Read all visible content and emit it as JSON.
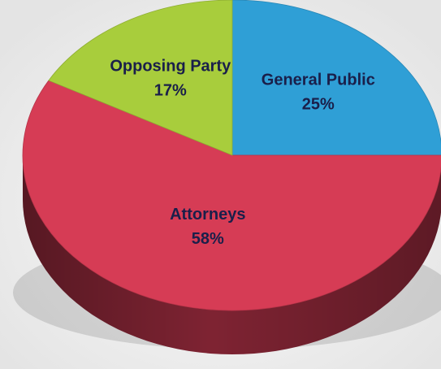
{
  "chart_data": {
    "type": "pie",
    "style": "3d",
    "slices": [
      {
        "label": "General Public",
        "value": 25,
        "display": "25%",
        "color": "#2f9fd6"
      },
      {
        "label": "Attorneys",
        "value": 58,
        "display": "58%",
        "color": "#d63c55"
      },
      {
        "label": "Opposing Party",
        "value": 17,
        "display": "17%",
        "color": "#a8cd3c"
      }
    ],
    "start_angle_deg": -90,
    "direction": "clockwise",
    "legend": "none",
    "labels_inside_slices": true
  }
}
